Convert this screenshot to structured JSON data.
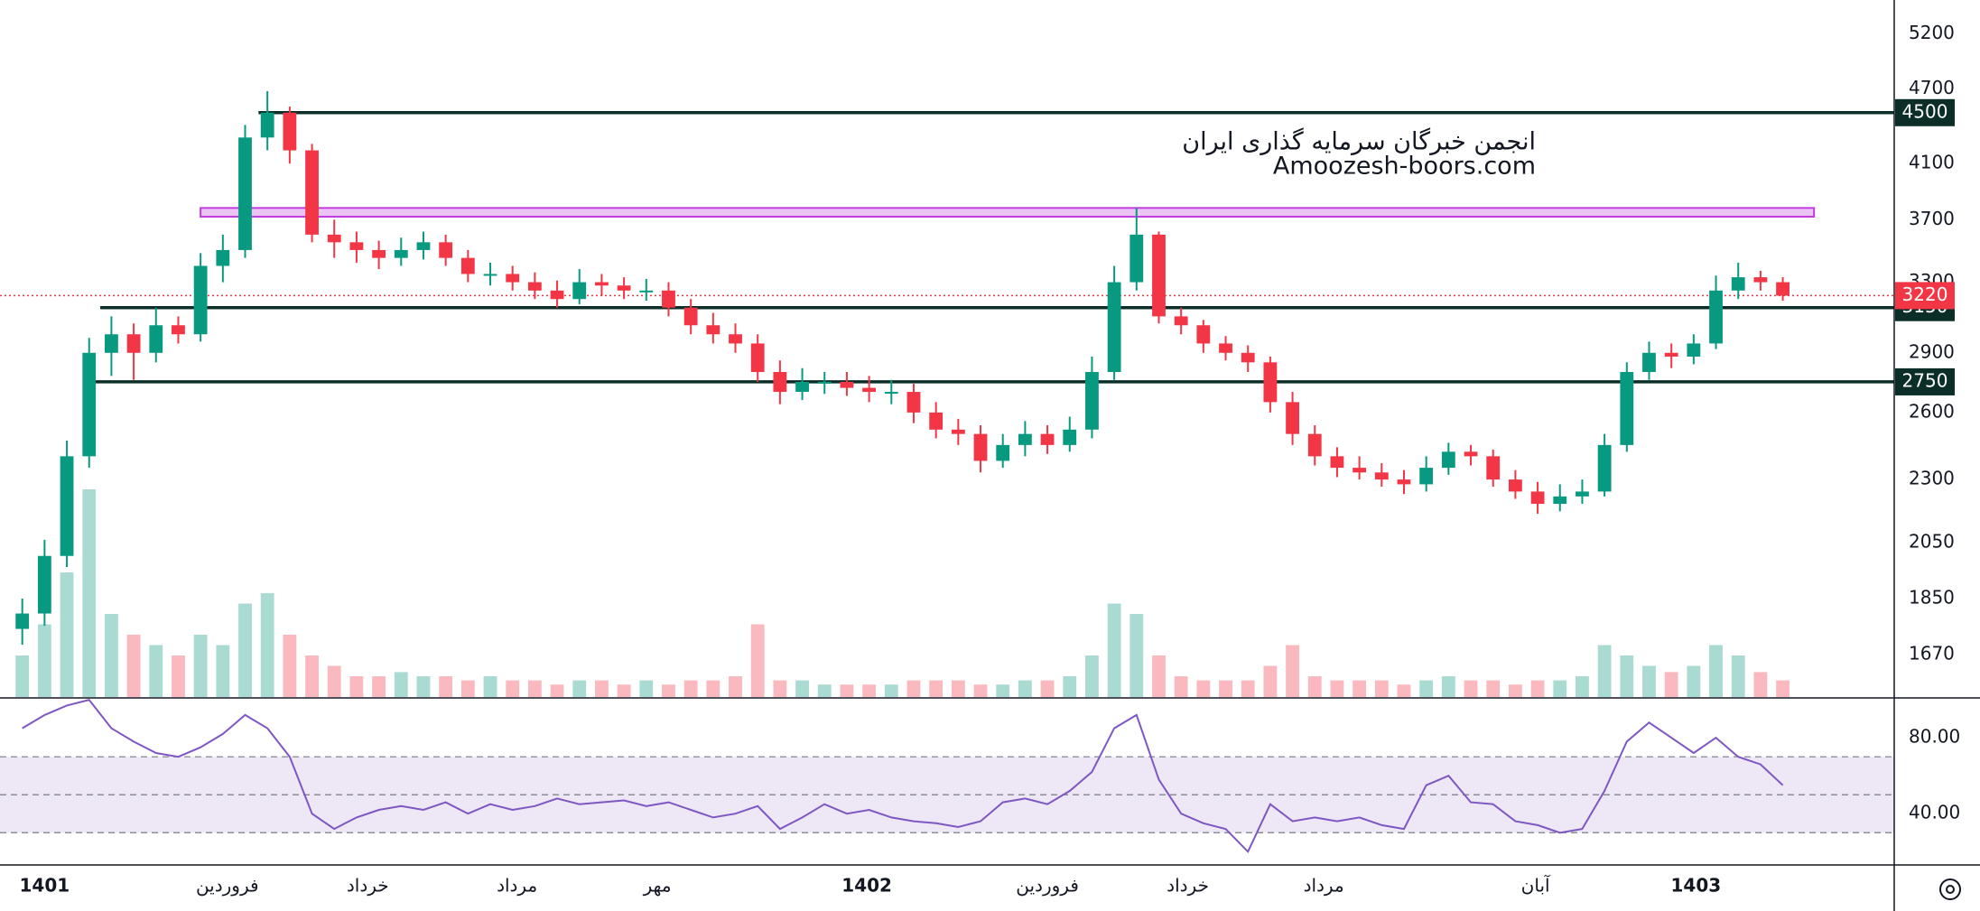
{
  "chart_data": {
    "type": "candlestick",
    "scale": "log",
    "xlim": [
      -1,
      84
    ],
    "xticks": [
      {
        "value": 1,
        "label": "1401"
      },
      {
        "value": 9.2,
        "label": "فروردین"
      },
      {
        "value": 15.5,
        "label": "خرداد"
      },
      {
        "value": 22.2,
        "label": "مرداد"
      },
      {
        "value": 28.5,
        "label": "مهر"
      },
      {
        "value": 37.9,
        "label": "1402"
      },
      {
        "value": 46,
        "label": "فروردین"
      },
      {
        "value": 52.3,
        "label": "خرداد"
      },
      {
        "value": 58.4,
        "label": "مرداد"
      },
      {
        "value": 67.9,
        "label": "آبان"
      },
      {
        "value": 75.1,
        "label": "1403"
      }
    ],
    "ylim": [
      1545,
      5530
    ],
    "yticks": [
      5200,
      4700,
      4100,
      3700,
      3300,
      2900,
      2600,
      2300,
      2050,
      1850,
      1670
    ],
    "open": [
      1750,
      1800,
      2000,
      2400,
      2900,
      3000,
      2900,
      3050,
      3000,
      3400,
      3500,
      4300,
      4500,
      4200,
      3600,
      3550,
      3500,
      3450,
      3500,
      3550,
      3450,
      3350,
      3350,
      3300,
      3250,
      3200,
      3300,
      3280,
      3250,
      3250,
      3150,
      3050,
      3000,
      2950,
      2800,
      2700,
      2750,
      2750,
      2720,
      2700,
      2700,
      2600,
      2520,
      2500,
      2380,
      2450,
      2500,
      2450,
      2520,
      2800,
      3300,
      3600,
      3100,
      3050,
      2950,
      2900,
      2850,
      2650,
      2500,
      2400,
      2350,
      2330,
      2300,
      2280,
      2350,
      2420,
      2400,
      2300,
      2250,
      2200,
      2230,
      2250,
      2450,
      2800,
      2900,
      2880,
      2950,
      3250,
      3330,
      3300
    ],
    "high": [
      1850,
      2060,
      2470,
      2980,
      3100,
      3060,
      3150,
      3100,
      3480,
      3600,
      4400,
      4680,
      4550,
      4250,
      3700,
      3620,
      3560,
      3580,
      3620,
      3600,
      3500,
      3420,
      3400,
      3360,
      3310,
      3380,
      3350,
      3330,
      3320,
      3300,
      3200,
      3120,
      3060,
      3000,
      2860,
      2820,
      2800,
      2800,
      2780,
      2760,
      2740,
      2650,
      2570,
      2540,
      2500,
      2560,
      2540,
      2580,
      2880,
      3400,
      3780,
      3620,
      3150,
      3080,
      2990,
      2940,
      2880,
      2700,
      2540,
      2440,
      2400,
      2370,
      2340,
      2400,
      2460,
      2450,
      2430,
      2340,
      2290,
      2280,
      2300,
      2500,
      2850,
      2960,
      2950,
      3000,
      3340,
      3420,
      3370,
      3330
    ],
    "low": [
      1700,
      1760,
      1960,
      2350,
      2780,
      2760,
      2850,
      2950,
      2960,
      3300,
      3450,
      4200,
      4100,
      3550,
      3450,
      3420,
      3380,
      3400,
      3440,
      3400,
      3300,
      3280,
      3250,
      3200,
      3150,
      3170,
      3220,
      3200,
      3190,
      3100,
      3000,
      2950,
      2900,
      2750,
      2640,
      2660,
      2690,
      2680,
      2650,
      2640,
      2550,
      2480,
      2450,
      2330,
      2350,
      2400,
      2410,
      2420,
      2480,
      2760,
      3250,
      3060,
      3000,
      2900,
      2860,
      2800,
      2600,
      2450,
      2360,
      2310,
      2300,
      2270,
      2240,
      2250,
      2320,
      2360,
      2270,
      2220,
      2160,
      2170,
      2200,
      2230,
      2420,
      2760,
      2820,
      2840,
      2920,
      3200,
      3250,
      3190
    ],
    "close": [
      1800,
      2000,
      2400,
      2900,
      3000,
      2900,
      3050,
      3000,
      3400,
      3500,
      4300,
      4500,
      4200,
      3600,
      3550,
      3500,
      3450,
      3500,
      3550,
      3450,
      3350,
      3350,
      3300,
      3250,
      3200,
      3300,
      3280,
      3250,
      3250,
      3150,
      3050,
      3000,
      2950,
      2800,
      2700,
      2750,
      2750,
      2720,
      2700,
      2700,
      2600,
      2520,
      2500,
      2380,
      2450,
      2500,
      2450,
      2520,
      2800,
      3300,
      3600,
      3100,
      3050,
      2950,
      2900,
      2850,
      2650,
      2500,
      2400,
      2350,
      2330,
      2300,
      2280,
      2350,
      2420,
      2400,
      2300,
      2250,
      2200,
      2230,
      2250,
      2450,
      2800,
      2900,
      2880,
      2950,
      3250,
      3330,
      3300,
      3220
    ],
    "volume": [
      20,
      35,
      60,
      100,
      40,
      30,
      25,
      20,
      30,
      25,
      45,
      50,
      30,
      20,
      15,
      10,
      10,
      12,
      10,
      10,
      8,
      10,
      8,
      8,
      6,
      8,
      8,
      6,
      8,
      6,
      8,
      8,
      10,
      35,
      8,
      8,
      6,
      6,
      6,
      6,
      8,
      8,
      8,
      6,
      6,
      8,
      8,
      10,
      20,
      45,
      40,
      20,
      10,
      8,
      8,
      8,
      15,
      25,
      10,
      8,
      8,
      8,
      6,
      8,
      10,
      8,
      8,
      6,
      8,
      8,
      10,
      25,
      20,
      15,
      12,
      15,
      25,
      20,
      12,
      8
    ],
    "up_color": "#089981",
    "down_color": "#f23645",
    "levels": [
      {
        "value": 4500,
        "start": 10.6,
        "color": "#0b2e28"
      },
      {
        "value": 3150,
        "start": 3.5,
        "color": "#0b2e28"
      },
      {
        "value": 2750,
        "start": 3,
        "color": "#0b2e28"
      }
    ],
    "zone": {
      "from": 3720,
      "to": 3780,
      "start": 8,
      "end": 80.4,
      "color": "#c43be0"
    },
    "last_price": {
      "value": 3220,
      "color": "#f23645"
    },
    "watermark": [
      "انجمن خبرگان سرمایه گذاری ایران",
      "Amoozesh-boors.com"
    ],
    "rsi": {
      "values": [
        85,
        92,
        97,
        100,
        85,
        78,
        72,
        70,
        75,
        82,
        92,
        85,
        70,
        40,
        32,
        38,
        42,
        44,
        42,
        46,
        40,
        45,
        42,
        44,
        48,
        45,
        46,
        47,
        44,
        46,
        42,
        38,
        40,
        44,
        32,
        38,
        45,
        40,
        42,
        38,
        36,
        35,
        33,
        36,
        46,
        48,
        45,
        52,
        62,
        85,
        92,
        58,
        40,
        35,
        32,
        20,
        45,
        36,
        38,
        36,
        38,
        34,
        32,
        55,
        60,
        46,
        45,
        36,
        34,
        30,
        32,
        52,
        78,
        88,
        80,
        72,
        80,
        70,
        66,
        55
      ],
      "ylim": [
        13,
        101
      ],
      "yticks": [
        {
          "value": 80,
          "label": "80.00"
        },
        {
          "value": 40,
          "label": "40.00"
        }
      ],
      "band": [
        30,
        70
      ],
      "mid": 50,
      "color": "#7e57c2",
      "band_color": "#ede7f6"
    }
  }
}
